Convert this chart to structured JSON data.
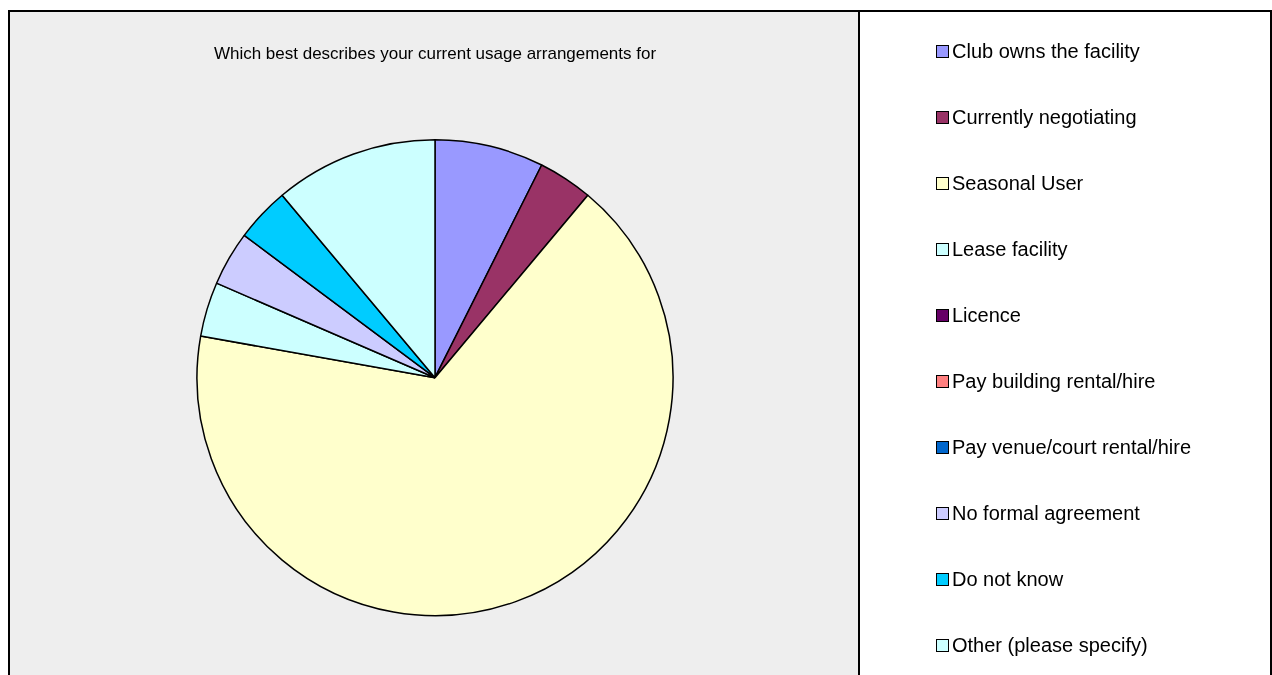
{
  "chart_data": {
    "type": "pie",
    "title": "Which best describes your current usage arrangements for",
    "categories": [
      "Club owns the facility",
      "Currently negotiating",
      "Seasonal User",
      "Lease facility",
      "Licence",
      "Pay building rental/hire",
      "Pay venue/court rental/hire",
      "No formal agreement",
      "Do not know",
      "Other (please specify)"
    ],
    "values": [
      7.4,
      3.7,
      66.7,
      3.7,
      0,
      0,
      0,
      3.7,
      3.7,
      11.1
    ],
    "colors": [
      "#9999ff",
      "#993366",
      "#ffffcc",
      "#ccffff",
      "#660066",
      "#ff8080",
      "#0066cc",
      "#ccccff",
      "#00ccff",
      "#ccffff"
    ],
    "legend": "right"
  }
}
